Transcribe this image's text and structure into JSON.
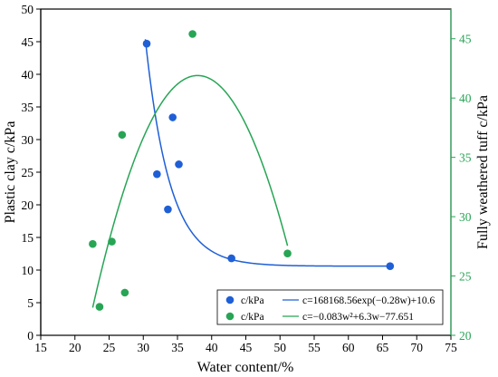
{
  "chart_data": {
    "type": "scatter",
    "xlabel": "Water content/%",
    "ylabel_left": "Plastic clay c/kPa",
    "ylabel_right": "Fully weathered tuff c/kPa",
    "xlim": [
      15,
      75
    ],
    "ylim_left": [
      0,
      50
    ],
    "ylim_right": [
      20,
      47.5
    ],
    "x_ticks": [
      15,
      20,
      25,
      30,
      35,
      40,
      45,
      50,
      55,
      60,
      65,
      70,
      75
    ],
    "y_left_ticks": [
      0,
      5,
      10,
      15,
      20,
      25,
      30,
      35,
      40,
      45,
      50
    ],
    "y_right_ticks": [
      20,
      25,
      30,
      35,
      40,
      45
    ],
    "grid": false,
    "legend_position": "bottom-center",
    "series": [
      {
        "name": "c/kPa",
        "axis": "left",
        "color": "#1f5fd6",
        "points": [
          [
            30.5,
            44.7
          ],
          [
            34.3,
            33.4
          ],
          [
            35.2,
            26.2
          ],
          [
            32.0,
            24.7
          ],
          [
            33.6,
            19.3
          ],
          [
            42.9,
            11.8
          ],
          [
            66.1,
            10.6
          ]
        ],
        "fit": {
          "label": "c=168168.56exp(−0.28w)+10.6",
          "model": "exp",
          "a": 168168.56,
          "b": -0.28,
          "c": 10.6,
          "x_range": [
            30.3,
            66.1
          ]
        }
      },
      {
        "name": "c/kPa",
        "axis": "right",
        "color": "#27a555",
        "points": [
          [
            37.2,
            45.4
          ],
          [
            26.9,
            36.9
          ],
          [
            22.6,
            27.7
          ],
          [
            25.4,
            27.9
          ],
          [
            51.1,
            26.9
          ],
          [
            27.3,
            23.6
          ],
          [
            23.6,
            22.4
          ]
        ],
        "fit": {
          "label": "c=−0.083w²+6.3w−77.651",
          "model": "poly2",
          "a": -0.083,
          "b": 6.3,
          "c": -77.651,
          "x_range": [
            22.6,
            51.1
          ]
        }
      }
    ]
  }
}
